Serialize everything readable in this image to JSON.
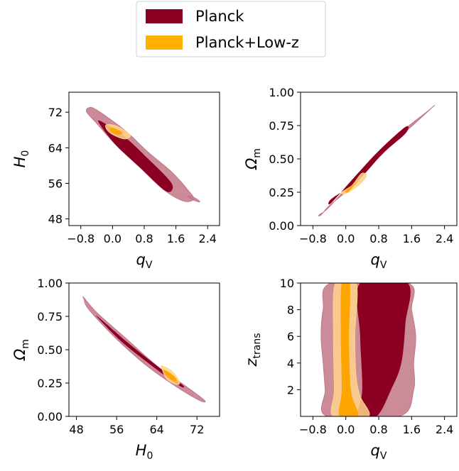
{
  "legend": {
    "entries": [
      {
        "label": "Planck",
        "color": "#8b0021"
      },
      {
        "label": "Planck+Low-z",
        "color": "#ffb000"
      }
    ]
  },
  "colors": {
    "planck_inner": "#8b0021",
    "planck_outer": "#c27786",
    "lowz_inner": "#ffa500",
    "lowz_outer": "#ffd489"
  },
  "chart_data": [
    {
      "type": "contour",
      "panel": "top-left",
      "xlabel": {
        "base": "q",
        "sub": "V"
      },
      "ylabel": {
        "base": "H",
        "sub": "0"
      },
      "xlim": [
        -1.1,
        2.7
      ],
      "ylim": [
        46.5,
        76.5
      ],
      "xticks": [
        {
          "v": -0.8,
          "label": "−0.8"
        },
        {
          "v": 0.0,
          "label": "0.0"
        },
        {
          "v": 0.8,
          "label": "0.8"
        },
        {
          "v": 1.6,
          "label": "1.6"
        },
        {
          "v": 2.4,
          "label": "2.4"
        }
      ],
      "yticks": [
        {
          "v": 48,
          "label": "48"
        },
        {
          "v": 56,
          "label": "56"
        },
        {
          "v": 64,
          "label": "64"
        },
        {
          "v": 72,
          "label": "72"
        }
      ],
      "series": [
        {
          "name": "Planck",
          "level": "outer",
          "color": "#c27786",
          "points": [
            [
              -0.6,
              73.0
            ],
            [
              -0.4,
              72.5
            ],
            [
              0.3,
              68.0
            ],
            [
              0.9,
              63.0
            ],
            [
              1.5,
              58.5
            ],
            [
              1.9,
              54.5
            ],
            [
              2.05,
              52.5
            ],
            [
              1.8,
              52.0
            ],
            [
              1.3,
              54.5
            ],
            [
              0.7,
              59.5
            ],
            [
              0.1,
              64.5
            ],
            [
              -0.4,
              69.5
            ],
            [
              -0.65,
              72.0
            ]
          ]
        },
        {
          "name": "Planck",
          "level": "outer",
          "color": "#c27786",
          "points": [
            [
              1.9,
              53.2
            ],
            [
              2.1,
              52.6
            ],
            [
              2.2,
              51.8
            ],
            [
              2.0,
              52.4
            ]
          ]
        },
        {
          "name": "Planck",
          "level": "inner",
          "color": "#8b0021",
          "points": [
            [
              -0.3,
              70.0
            ],
            [
              0.3,
              66.5
            ],
            [
              0.9,
              61.5
            ],
            [
              1.45,
              56.5
            ],
            [
              1.5,
              54.5
            ],
            [
              1.3,
              54.5
            ],
            [
              0.7,
              59.5
            ],
            [
              0.1,
              64.5
            ],
            [
              -0.3,
              69.0
            ]
          ]
        },
        {
          "name": "Planck+Low-z",
          "level": "outer",
          "color": "#ffd489",
          "points": [
            [
              -0.15,
              69.2
            ],
            [
              0.1,
              68.9
            ],
            [
              0.35,
              67.6
            ],
            [
              0.45,
              66.6
            ],
            [
              0.3,
              66.0
            ],
            [
              0.0,
              67.0
            ],
            [
              -0.15,
              68.2
            ]
          ]
        },
        {
          "name": "Planck+Low-z",
          "level": "inner",
          "color": "#ffa500",
          "points": [
            [
              -0.05,
              68.6
            ],
            [
              0.15,
              68.0
            ],
            [
              0.25,
              67.2
            ],
            [
              0.1,
              67.0
            ],
            [
              -0.05,
              67.8
            ]
          ]
        }
      ]
    },
    {
      "type": "contour",
      "panel": "top-right",
      "xlabel": {
        "base": "q",
        "sub": "V"
      },
      "ylabel": {
        "base": "Ω",
        "sub": "m"
      },
      "xlim": [
        -1.1,
        2.7
      ],
      "ylim": [
        0.0,
        1.0
      ],
      "xticks": [
        {
          "v": -0.8,
          "label": "−0.8"
        },
        {
          "v": 0.0,
          "label": "0.0"
        },
        {
          "v": 0.8,
          "label": "0.8"
        },
        {
          "v": 1.6,
          "label": "1.6"
        },
        {
          "v": 2.4,
          "label": "2.4"
        }
      ],
      "yticks": [
        {
          "v": 0.0,
          "label": "0.00"
        },
        {
          "v": 0.25,
          "label": "0.25"
        },
        {
          "v": 0.5,
          "label": "0.50"
        },
        {
          "v": 0.75,
          "label": "0.75"
        },
        {
          "v": 1.0,
          "label": "1.00"
        }
      ],
      "series": [
        {
          "name": "Planck",
          "level": "outer",
          "color": "#c27786",
          "points": [
            [
              -0.65,
              0.08
            ],
            [
              -0.4,
              0.14
            ],
            [
              0.3,
              0.38
            ],
            [
              0.9,
              0.58
            ],
            [
              1.5,
              0.74
            ],
            [
              2.0,
              0.86
            ],
            [
              2.15,
              0.9
            ],
            [
              1.8,
              0.8
            ],
            [
              1.3,
              0.66
            ],
            [
              0.7,
              0.48
            ],
            [
              0.1,
              0.28
            ],
            [
              -0.4,
              0.15
            ],
            [
              -0.6,
              0.08
            ]
          ]
        },
        {
          "name": "Planck",
          "level": "inner",
          "color": "#8b0021",
          "points": [
            [
              -0.35,
              0.17
            ],
            [
              0.2,
              0.36
            ],
            [
              0.8,
              0.56
            ],
            [
              1.45,
              0.74
            ],
            [
              1.45,
              0.69
            ],
            [
              0.9,
              0.54
            ],
            [
              0.3,
              0.34
            ],
            [
              -0.35,
              0.2
            ]
          ]
        },
        {
          "name": "Planck+Low-z",
          "level": "outer",
          "color": "#ffd489",
          "points": [
            [
              -0.1,
              0.25
            ],
            [
              0.15,
              0.3
            ],
            [
              0.38,
              0.39
            ],
            [
              0.5,
              0.37
            ],
            [
              0.3,
              0.3
            ],
            [
              0.0,
              0.24
            ]
          ]
        },
        {
          "name": "Planck+Low-z",
          "level": "inner",
          "color": "#ffa500",
          "points": [
            [
              0.0,
              0.26
            ],
            [
              0.2,
              0.31
            ],
            [
              0.32,
              0.34
            ],
            [
              0.2,
              0.3
            ],
            [
              0.05,
              0.25
            ]
          ]
        }
      ]
    },
    {
      "type": "contour",
      "panel": "bottom-left",
      "xlabel": {
        "base": "H",
        "sub": "0"
      },
      "ylabel": {
        "base": "Ω",
        "sub": "m"
      },
      "xlim": [
        46.5,
        76.5
      ],
      "ylim": [
        0.0,
        1.0
      ],
      "xticks": [
        {
          "v": 48,
          "label": "48"
        },
        {
          "v": 56,
          "label": "56"
        },
        {
          "v": 64,
          "label": "64"
        },
        {
          "v": 72,
          "label": "72"
        }
      ],
      "yticks": [
        {
          "v": 0.0,
          "label": "0.00"
        },
        {
          "v": 0.25,
          "label": "0.25"
        },
        {
          "v": 0.5,
          "label": "0.50"
        },
        {
          "v": 0.75,
          "label": "0.75"
        },
        {
          "v": 1.0,
          "label": "1.00"
        }
      ],
      "series": [
        {
          "name": "Planck",
          "level": "outer",
          "color": "#c27786",
          "points": [
            [
              49.5,
              0.89
            ],
            [
              52.0,
              0.78
            ],
            [
              58.0,
              0.58
            ],
            [
              64.0,
              0.38
            ],
            [
              70.0,
              0.22
            ],
            [
              73.5,
              0.12
            ],
            [
              72.5,
              0.12
            ],
            [
              68.0,
              0.22
            ],
            [
              62.0,
              0.38
            ],
            [
              56.0,
              0.58
            ],
            [
              50.5,
              0.8
            ],
            [
              49.5,
              0.88
            ]
          ]
        },
        {
          "name": "Planck",
          "level": "inner",
          "color": "#8b0021",
          "points": [
            [
              52.5,
              0.74
            ],
            [
              58.0,
              0.56
            ],
            [
              64.0,
              0.38
            ],
            [
              69.0,
              0.24
            ],
            [
              68.5,
              0.23
            ],
            [
              63.0,
              0.38
            ],
            [
              57.0,
              0.56
            ],
            [
              52.5,
              0.73
            ]
          ]
        },
        {
          "name": "Planck+Low-z",
          "level": "outer",
          "color": "#ffd489",
          "points": [
            [
              65.0,
              0.38
            ],
            [
              67.0,
              0.34
            ],
            [
              68.5,
              0.26
            ],
            [
              68.0,
              0.24
            ],
            [
              66.0,
              0.28
            ],
            [
              65.0,
              0.36
            ]
          ]
        },
        {
          "name": "Planck+Low-z",
          "level": "inner",
          "color": "#ffa500",
          "points": [
            [
              65.5,
              0.35
            ],
            [
              67.2,
              0.31
            ],
            [
              68.0,
              0.27
            ],
            [
              67.0,
              0.27
            ],
            [
              65.5,
              0.33
            ]
          ]
        }
      ]
    },
    {
      "type": "contour",
      "panel": "bottom-right",
      "xlabel": {
        "base": "q",
        "sub": "V"
      },
      "ylabel": {
        "base": "z",
        "sub": "trans"
      },
      "xlim": [
        -1.1,
        2.7
      ],
      "ylim": [
        0.0,
        10.0
      ],
      "xticks": [
        {
          "v": -0.8,
          "label": "−0.8"
        },
        {
          "v": 0.0,
          "label": "0.0"
        },
        {
          "v": 0.8,
          "label": "0.8"
        },
        {
          "v": 1.6,
          "label": "1.6"
        },
        {
          "v": 2.4,
          "label": "2.4"
        }
      ],
      "yticks": [
        {
          "v": 2,
          "label": "2"
        },
        {
          "v": 4,
          "label": "4"
        },
        {
          "v": 6,
          "label": "6"
        },
        {
          "v": 8,
          "label": "8"
        },
        {
          "v": 10,
          "label": "10"
        }
      ],
      "series": [
        {
          "name": "Planck",
          "level": "outer",
          "color": "#c27786",
          "points": [
            [
              -0.35,
              10.0
            ],
            [
              -0.55,
              8.0
            ],
            [
              -0.6,
              6.0
            ],
            [
              -0.55,
              4.0
            ],
            [
              -0.5,
              2.0
            ],
            [
              -0.45,
              0.0
            ],
            [
              1.3,
              0.0
            ],
            [
              1.65,
              2.0
            ],
            [
              1.65,
              4.0
            ],
            [
              1.7,
              6.0
            ],
            [
              1.6,
              8.0
            ],
            [
              1.5,
              10.0
            ]
          ]
        },
        {
          "name": "Planck",
          "level": "inner",
          "color": "#8b0021",
          "points": [
            [
              0.35,
              10.0
            ],
            [
              0.35,
              6.0
            ],
            [
              0.4,
              2.0
            ],
            [
              0.3,
              0.0
            ],
            [
              0.75,
              0.0
            ],
            [
              1.1,
              2.0
            ],
            [
              1.35,
              4.0
            ],
            [
              1.45,
              7.0
            ],
            [
              1.5,
              10.0
            ]
          ]
        },
        {
          "name": "Planck+Low-z",
          "level": "outer",
          "color": "#ffd489",
          "points": [
            [
              -0.25,
              10.0
            ],
            [
              -0.3,
              6.0
            ],
            [
              -0.28,
              2.0
            ],
            [
              -0.3,
              0.0
            ],
            [
              0.55,
              0.0
            ],
            [
              0.35,
              1.5
            ],
            [
              0.25,
              3.0
            ],
            [
              0.22,
              6.0
            ],
            [
              0.25,
              10.0
            ]
          ]
        },
        {
          "name": "Planck+Low-z",
          "level": "inner",
          "color": "#ffa500",
          "points": [
            [
              -0.1,
              10.0
            ],
            [
              -0.12,
              6.0
            ],
            [
              -0.1,
              2.0
            ],
            [
              -0.15,
              0.0
            ],
            [
              0.3,
              0.0
            ],
            [
              0.15,
              1.5
            ],
            [
              0.1,
              3.0
            ],
            [
              0.08,
              6.0
            ],
            [
              0.1,
              10.0
            ]
          ]
        }
      ]
    }
  ]
}
